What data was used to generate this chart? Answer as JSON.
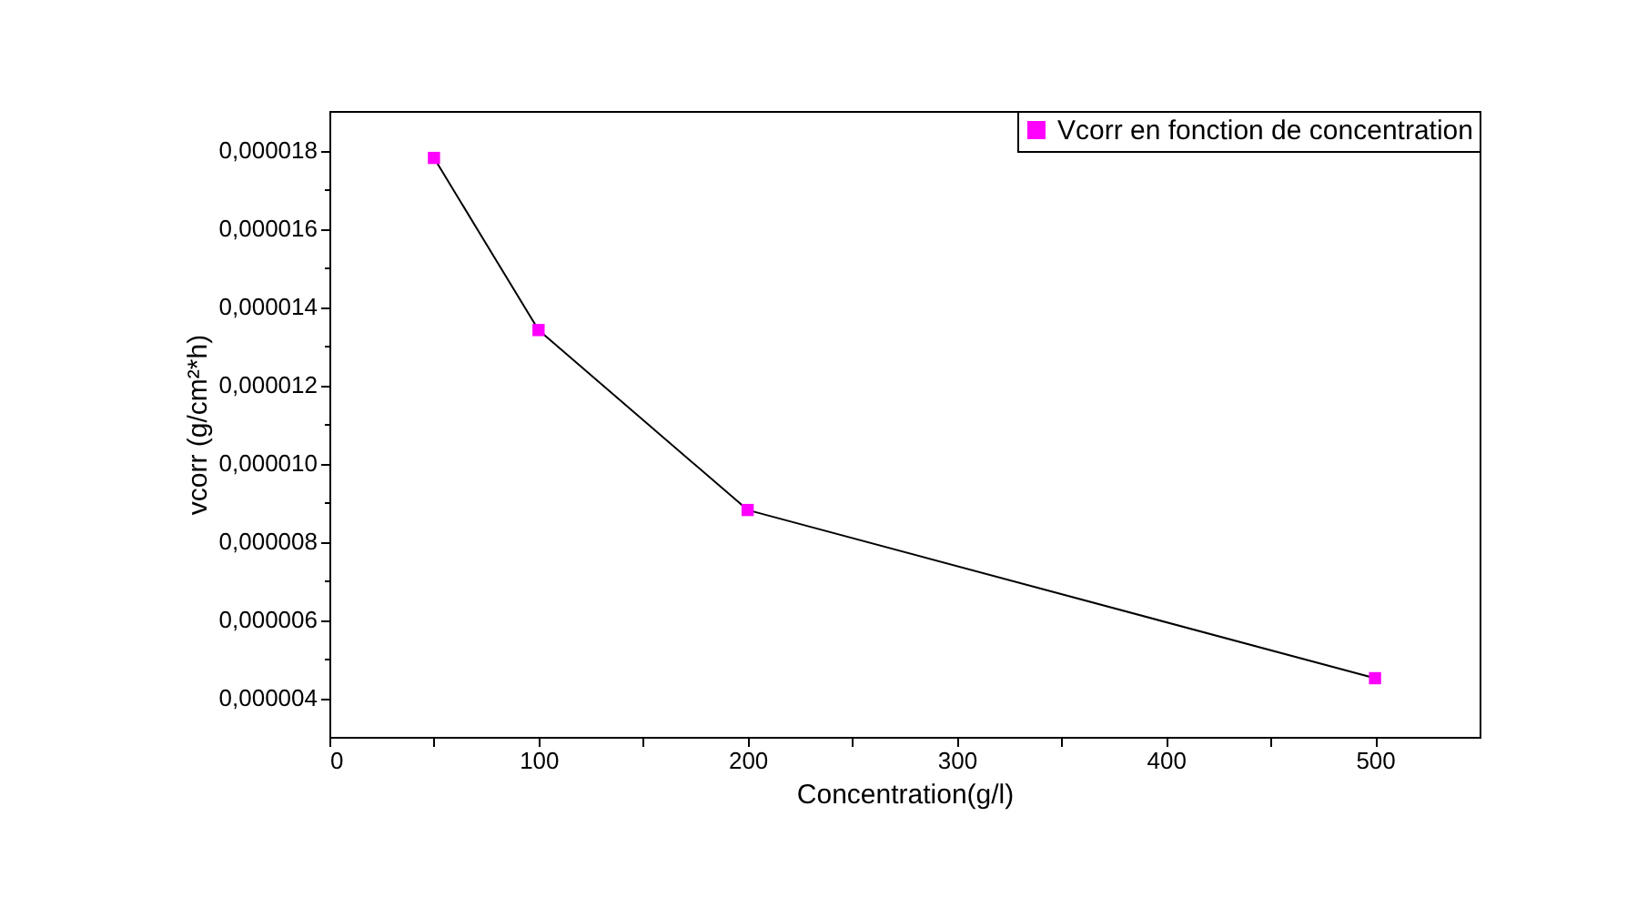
{
  "chart_data": {
    "type": "line",
    "xlabel": "Concentration(g/l)",
    "ylabel": "vcorr (g/cm²*h)",
    "x": [
      50,
      100,
      200,
      500
    ],
    "series": [
      {
        "name": "Vcorr en fonction de concentration",
        "color": "#ff00ff",
        "values": [
          1.78e-05,
          1.34e-05,
          8.8e-06,
          4.5e-06
        ]
      }
    ],
    "xlim": [
      0,
      550
    ],
    "ylim": [
      3e-06,
      1.9e-05
    ],
    "xticks": [
      0,
      {
        "value": 50,
        "label": null
      },
      100,
      {
        "value": 150,
        "label": null
      },
      200,
      {
        "value": 250,
        "label": null
      },
      300,
      {
        "value": 350,
        "label": null
      },
      400,
      {
        "value": 450,
        "label": null
      },
      500
    ],
    "yticks": [
      {
        "value": 4e-06,
        "label": "0,000004"
      },
      {
        "value": 5e-06,
        "label": null
      },
      {
        "value": 6e-06,
        "label": "0,000006"
      },
      {
        "value": 7e-06,
        "label": null
      },
      {
        "value": 8e-06,
        "label": "0,000008"
      },
      {
        "value": 9e-06,
        "label": null
      },
      {
        "value": 1e-05,
        "label": "0,000010"
      },
      {
        "value": 1.1e-05,
        "label": null
      },
      {
        "value": 1.2e-05,
        "label": "0,000012"
      },
      {
        "value": 1.3e-05,
        "label": null
      },
      {
        "value": 1.4e-05,
        "label": "0,000014"
      },
      {
        "value": 1.5e-05,
        "label": null
      },
      {
        "value": 1.6e-05,
        "label": "0,000016"
      },
      {
        "value": 1.7e-05,
        "label": null
      },
      {
        "value": 1.8e-05,
        "label": "0,000018"
      }
    ],
    "marker": "square",
    "line_style": "solid",
    "legend": "top right",
    "grid": false
  }
}
